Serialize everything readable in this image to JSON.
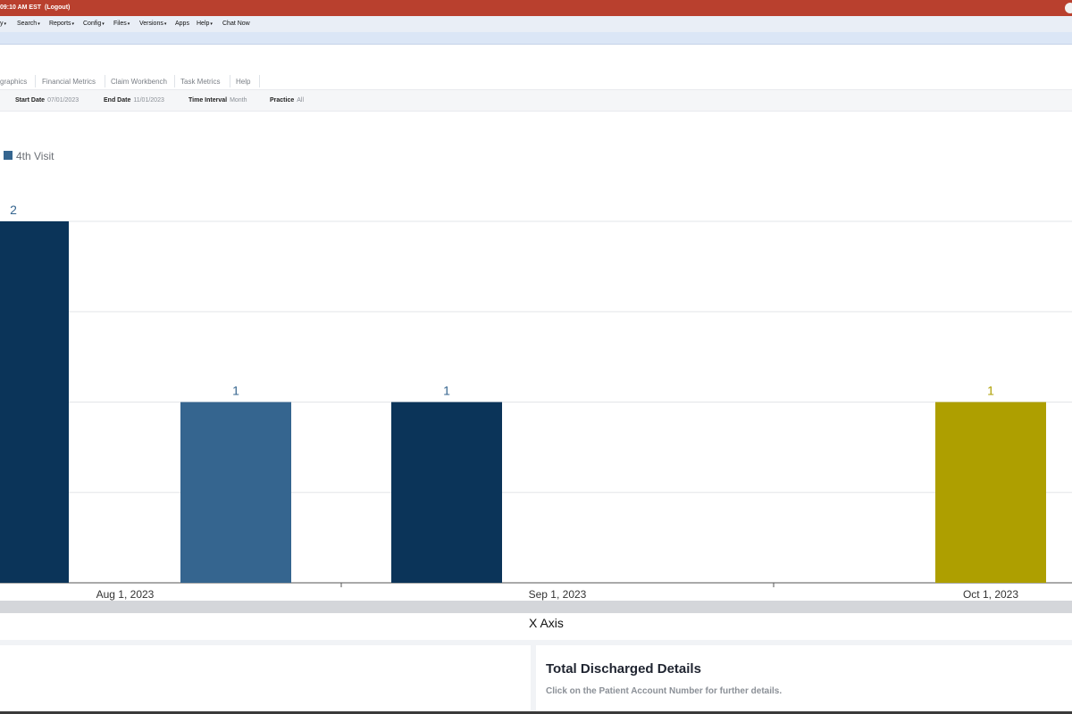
{
  "topbar": {
    "time": "09:10 AM EST",
    "logout": "(Logout)"
  },
  "menu": {
    "items": [
      {
        "label": "y",
        "caret": true
      },
      {
        "label": "Search",
        "caret": true
      },
      {
        "label": "Reports",
        "caret": true
      },
      {
        "label": "Config",
        "caret": true
      },
      {
        "label": "Files",
        "caret": true
      },
      {
        "label": "Versions",
        "caret": true
      },
      {
        "label": "Apps",
        "caret": false
      },
      {
        "label": "Help",
        "caret": true
      },
      {
        "label": "Chat Now",
        "caret": false
      }
    ]
  },
  "tabs": [
    "graphics",
    "Financial Metrics",
    "Claim Workbench",
    "Task Metrics",
    "Help"
  ],
  "filters": {
    "start_date_label": "Start Date",
    "start_date_value": "07/01/2023",
    "end_date_label": "End Date",
    "end_date_value": "11/01/2023",
    "time_interval_label": "Time Interval",
    "time_interval_value": "Month",
    "practice_label": "Practice",
    "practice_value": "All"
  },
  "legend": {
    "label": "4th Visit",
    "color": "#35658f"
  },
  "chart_data": {
    "type": "bar",
    "xlabel": "X Axis",
    "x_tick_labels": [
      "Aug 1, 2023",
      "Sep 1, 2023",
      "Oct 1, 2023"
    ],
    "ylim": [
      0,
      2
    ],
    "gridlines": true,
    "bars": [
      {
        "value": 2,
        "color": "#0b3459"
      },
      {
        "value": 1,
        "color": "#35658f"
      },
      {
        "value": 1,
        "color": "#0b3459"
      },
      {
        "value": 1,
        "color": "#ae9f00"
      }
    ]
  },
  "details": {
    "title": "Total Discharged Details",
    "subtitle": "Click on the Patient Account Number for further details."
  },
  "icons": {
    "hscrollbar": "horizontal-scrollbar"
  }
}
